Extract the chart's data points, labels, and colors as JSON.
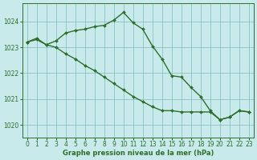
{
  "line1_x": [
    0,
    1,
    2,
    3,
    4,
    5,
    6,
    7,
    8,
    9,
    10,
    11,
    12,
    13,
    14,
    15,
    16,
    17,
    18,
    19,
    20,
    21,
    22,
    23
  ],
  "line1_y": [
    1023.2,
    1023.35,
    1023.1,
    1023.25,
    1023.55,
    1023.65,
    1023.7,
    1023.8,
    1023.85,
    1024.05,
    1024.35,
    1023.95,
    1023.7,
    1023.05,
    1022.55,
    1021.9,
    1021.85,
    1021.45,
    1021.1,
    1020.55,
    1020.2,
    1020.3,
    1020.55,
    1020.5
  ],
  "line2_x": [
    0,
    1,
    2,
    3,
    4,
    5,
    6,
    7,
    8,
    9,
    10,
    11,
    12,
    13,
    14,
    15,
    16,
    17,
    18,
    19,
    20,
    21,
    22,
    23
  ],
  "line2_y": [
    1023.2,
    1023.3,
    1023.1,
    1023.0,
    1022.75,
    1022.55,
    1022.3,
    1022.1,
    1021.85,
    1021.6,
    1021.35,
    1021.1,
    1020.9,
    1020.7,
    1020.55,
    1020.55,
    1020.5,
    1020.5,
    1020.5,
    1020.5,
    1020.2,
    1020.3,
    1020.55,
    1020.5
  ],
  "line_color": "#2d6e2d",
  "bg_color": "#c8eaea",
  "grid_color": "#80bbbb",
  "xlabel": "Graphe pression niveau de la mer (hPa)",
  "xlabel_color": "#2d6e2d",
  "tick_color": "#2d6e2d",
  "ylim": [
    1019.5,
    1024.7
  ],
  "yticks": [
    1020,
    1021,
    1022,
    1023,
    1024
  ],
  "xticks": [
    0,
    1,
    2,
    3,
    4,
    5,
    6,
    7,
    8,
    9,
    10,
    11,
    12,
    13,
    14,
    15,
    16,
    17,
    18,
    19,
    20,
    21,
    22,
    23
  ],
  "marker_size": 2.0,
  "line_width": 1.0
}
